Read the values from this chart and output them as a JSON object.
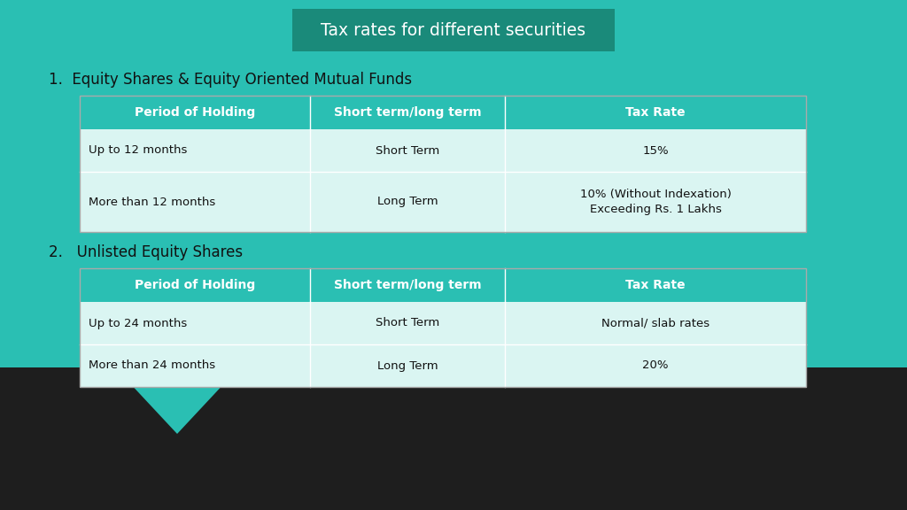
{
  "title": "Tax rates for different securities",
  "bg_color": "#2ABFB3",
  "bottom_color": "#1e1e1e",
  "title_bg_color": "#1a8a7a",
  "header_bg_color": "#2ABFB3",
  "row_bg_color": "#daf5f2",
  "table1_title": "1.  Equity Shares & Equity Oriented Mutual Funds",
  "table2_title": "2.   Unlisted Equity Shares",
  "col_headers": [
    "Period of Holding",
    "Short term/long term",
    "Tax Rate"
  ],
  "table1_rows": [
    [
      "Up to 12 months",
      "Short Term",
      "15%"
    ],
    [
      "More than 12 months",
      "Long Term",
      "10% (Without Indexation)\nExceeding Rs. 1 Lakhs"
    ]
  ],
  "table2_rows": [
    [
      "Up to 24 months",
      "Short Term",
      "Normal/ slab rates"
    ],
    [
      "More than 24 months",
      "Long Term",
      "20%"
    ]
  ],
  "header_text_color": "#ffffff",
  "row_text_color": "#111111",
  "title_text_color": "#ffffff",
  "section_text_color": "#111111",
  "divider_color": "#ffffff",
  "table_border_color": "#aaaaaa"
}
